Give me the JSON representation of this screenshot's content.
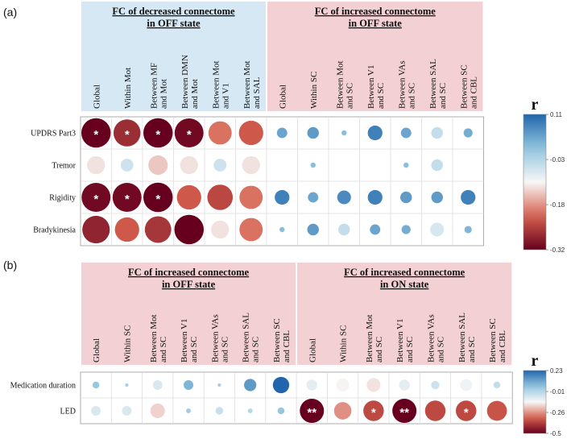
{
  "chart_data": [
    {
      "type": "heatmap",
      "panel_label": "(a)",
      "colorbar": {
        "title": "r",
        "ticks": [
          "0.11",
          "-0.03",
          "-0.18",
          "-0.32"
        ],
        "min": -0.32,
        "max": 0.11
      },
      "groups": [
        {
          "title_line1": "FC of decreased connectome",
          "title_line2": "in OFF state",
          "color": "#d5e8f4",
          "span": [
            0,
            5
          ]
        },
        {
          "title_line1": "FC of increased connectome",
          "title_line2": "in OFF state",
          "color": "#f3d0d3",
          "span": [
            6,
            12
          ]
        }
      ],
      "columns": [
        [
          "Global"
        ],
        [
          "Within Mot"
        ],
        [
          "Between MF",
          "and Mot"
        ],
        [
          "Between DMN",
          "and Mot"
        ],
        [
          "Between Mot",
          "and V1"
        ],
        [
          "Between Mot",
          "and SAL"
        ],
        [
          "Global"
        ],
        [
          "Within SC"
        ],
        [
          "Between Mot",
          "and SC"
        ],
        [
          "Between V1",
          "and SC"
        ],
        [
          "Between VAs",
          "and SC"
        ],
        [
          "Between SAL",
          "and SC"
        ],
        [
          "Between SC",
          "and CBL"
        ]
      ],
      "rows": [
        "UPDRS Part3",
        "Tremor",
        "Rigidity",
        "Bradykinesia"
      ],
      "values": [
        [
          -0.32,
          -0.27,
          -0.32,
          -0.31,
          -0.2,
          -0.22,
          0.04,
          0.05,
          0.01,
          0.08,
          0.04,
          -0.05,
          0.03
        ],
        [
          -0.12,
          -0.06,
          -0.14,
          -0.12,
          -0.06,
          -0.12,
          0.0,
          0.01,
          0.0,
          0.0,
          0.01,
          -0.05,
          0.0
        ],
        [
          -0.31,
          -0.31,
          -0.32,
          -0.22,
          -0.24,
          -0.2,
          0.08,
          0.04,
          0.07,
          0.08,
          0.05,
          0.05,
          0.08
        ],
        [
          -0.28,
          -0.22,
          -0.26,
          -0.32,
          -0.12,
          -0.2,
          0.01,
          0.05,
          -0.05,
          0.04,
          0.03,
          -0.07,
          0.02
        ]
      ],
      "annotations": [
        {
          "row": 0,
          "col": 0,
          "text": "*"
        },
        {
          "row": 0,
          "col": 1,
          "text": "*"
        },
        {
          "row": 0,
          "col": 2,
          "text": "*"
        },
        {
          "row": 0,
          "col": 3,
          "text": "*"
        },
        {
          "row": 2,
          "col": 0,
          "text": "*"
        },
        {
          "row": 2,
          "col": 1,
          "text": "*"
        },
        {
          "row": 2,
          "col": 2,
          "text": "*"
        }
      ]
    },
    {
      "type": "heatmap",
      "panel_label": "(b)",
      "colorbar": {
        "title": "r",
        "ticks": [
          "0.23",
          "-0.01",
          "-0.26",
          "-0.5"
        ],
        "min": -0.5,
        "max": 0.23
      },
      "groups": [
        {
          "title_line1": "FC of increased connectome",
          "title_line2": "in OFF state",
          "color": "#f3d0d3",
          "span": [
            0,
            6
          ]
        },
        {
          "title_line1": "FC of increased connectome",
          "title_line2": "in ON state",
          "color": "#f3d0d3",
          "span": [
            7,
            13
          ]
        }
      ],
      "columns": [
        [
          "Global"
        ],
        [
          "Within SC"
        ],
        [
          "Between Mot",
          "and SC"
        ],
        [
          "Between V1",
          "and SC"
        ],
        [
          "Between VAs",
          "and SC"
        ],
        [
          "Between SAL",
          "and SC"
        ],
        [
          "Between SC",
          "and CBL"
        ],
        [
          "Global"
        ],
        [
          "Within SC"
        ],
        [
          "Between Mot",
          "and SC"
        ],
        [
          "Between V1",
          "and SC"
        ],
        [
          "Between VAs",
          "and SC"
        ],
        [
          "Between SAL",
          "and SC"
        ],
        [
          "Between SC",
          "and CBL"
        ]
      ],
      "rows": [
        "Medication duration",
        "LED"
      ],
      "values": [
        [
          0.04,
          0.01,
          -0.08,
          0.08,
          0.01,
          0.13,
          0.23,
          -0.1,
          -0.14,
          -0.16,
          -0.1,
          -0.06,
          -0.12,
          -0.04
        ],
        [
          -0.08,
          -0.08,
          -0.18,
          0.02,
          -0.05,
          -0.02,
          0.04,
          -0.5,
          -0.26,
          -0.36,
          -0.5,
          -0.36,
          -0.36,
          -0.34
        ]
      ],
      "annotations": [
        {
          "row": 1,
          "col": 7,
          "text": "**"
        },
        {
          "row": 1,
          "col": 9,
          "text": "*"
        },
        {
          "row": 1,
          "col": 10,
          "text": "**"
        },
        {
          "row": 1,
          "col": 12,
          "text": "*"
        }
      ]
    }
  ]
}
